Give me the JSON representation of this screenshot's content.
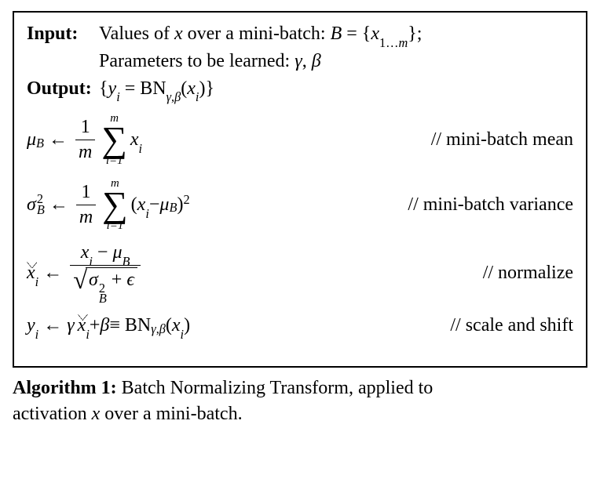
{
  "colors": {
    "border": "#000000",
    "background": "#ffffff",
    "text": "#000000"
  },
  "typography": {
    "font_family": "Times New Roman",
    "base_size_pt": 24
  },
  "io": {
    "input_label": "Input:",
    "output_label": "Output:"
  },
  "steps": {
    "mean_comment": "// mini-batch mean",
    "var_comment": "// mini-batch variance",
    "norm_comment": "// normalize",
    "scale_comment": "// scale and shift"
  },
  "caption": {
    "label": "Algorithm 1:",
    "text_a": " Batch Normalizing Transform, applied to",
    "text_b": "activation ",
    "text_c": " over a mini-batch."
  }
}
